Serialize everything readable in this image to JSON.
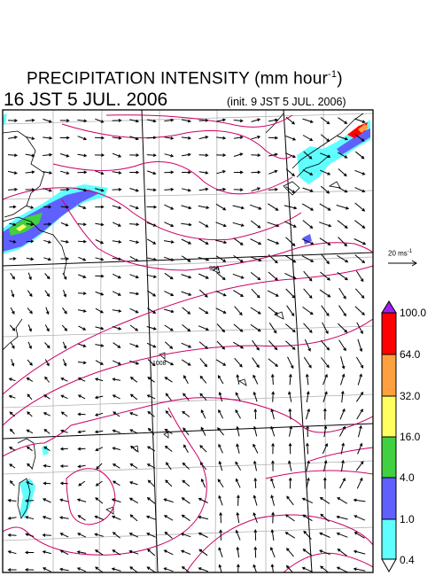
{
  "header": {
    "title_main": "PRECIPITATION INTENSITY (mm hour",
    "title_sup": "-1",
    "title_close": ")",
    "valid_time": "16 JST 5 JUL. 2006",
    "init_time": "(init. 9 JST 5 JUL. 2006)"
  },
  "wind_reference": {
    "label": "20 ms",
    "sup": "-1"
  },
  "legend": {
    "levels": [
      "100.0",
      "64.0",
      "32.0",
      "16.0",
      "4.0",
      "1.0",
      "0.4"
    ],
    "colors": {
      "above": "#a020f0",
      "64-100": "#ff0000",
      "32-64": "#ffa040",
      "16-32": "#ffff60",
      "4-16": "#40d040",
      "1-4": "#6060ff",
      "0.4-1": "#60ffff",
      "below": "#ffffff"
    }
  },
  "contour_labels": [
    "996",
    "1008"
  ],
  "colors": {
    "contour": "#cc0066",
    "grid": "#aaaaaa",
    "coast": "#000000",
    "arrow": "#000000"
  }
}
